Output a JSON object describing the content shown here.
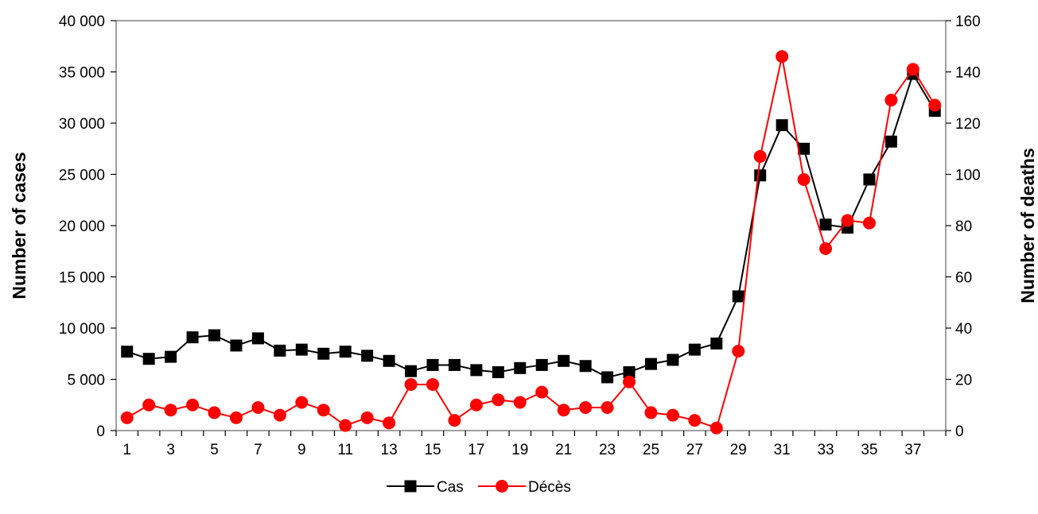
{
  "chart_data": {
    "type": "line",
    "x": [
      1,
      2,
      3,
      4,
      5,
      6,
      7,
      8,
      9,
      10,
      11,
      12,
      13,
      14,
      15,
      16,
      17,
      18,
      19,
      20,
      21,
      22,
      23,
      24,
      25,
      26,
      27,
      28,
      29,
      30,
      31,
      32,
      33,
      34,
      35,
      36,
      37,
      38
    ],
    "x_tick_labels": [
      "1",
      "3",
      "5",
      "7",
      "9",
      "11",
      "13",
      "15",
      "17",
      "19",
      "21",
      "23",
      "25",
      "27",
      "29",
      "31",
      "33",
      "35",
      "37"
    ],
    "y_left": {
      "label": "Number of cases",
      "lim": [
        0,
        40000
      ],
      "tick_labels": [
        "0",
        "5 000",
        "10 000",
        "15 000",
        "20 000",
        "25 000",
        "30 000",
        "35 000",
        "40 000"
      ]
    },
    "y_right": {
      "label": "Number of deaths",
      "lim": [
        0,
        160
      ],
      "tick_labels": [
        "0",
        "20",
        "40",
        "60",
        "80",
        "100",
        "120",
        "140",
        "160"
      ]
    },
    "series": [
      {
        "name": "Cas",
        "axis": "left",
        "color": "#000000",
        "marker": "square",
        "values": [
          7700,
          7000,
          7200,
          9100,
          9300,
          8300,
          9000,
          7800,
          7900,
          7500,
          7700,
          7300,
          6800,
          5800,
          6400,
          6400,
          5900,
          5700,
          6100,
          6400,
          6800,
          6300,
          5200,
          5700,
          6500,
          6900,
          7900,
          8500,
          13100,
          24900,
          29800,
          27500,
          20100,
          19800,
          24500,
          28200,
          34800,
          31200
        ]
      },
      {
        "name": "Décès",
        "axis": "right",
        "color": "#ff0000",
        "marker": "circle",
        "values": [
          5,
          10,
          8,
          10,
          7,
          5,
          9,
          6,
          11,
          8,
          2,
          5,
          3,
          18,
          18,
          4,
          10,
          12,
          11,
          15,
          8,
          9,
          9,
          19,
          7,
          6,
          4,
          1,
          31,
          107,
          146,
          98,
          71,
          82,
          81,
          129,
          141,
          127
        ]
      }
    ],
    "legend_position": "bottom-center",
    "grid": false
  }
}
